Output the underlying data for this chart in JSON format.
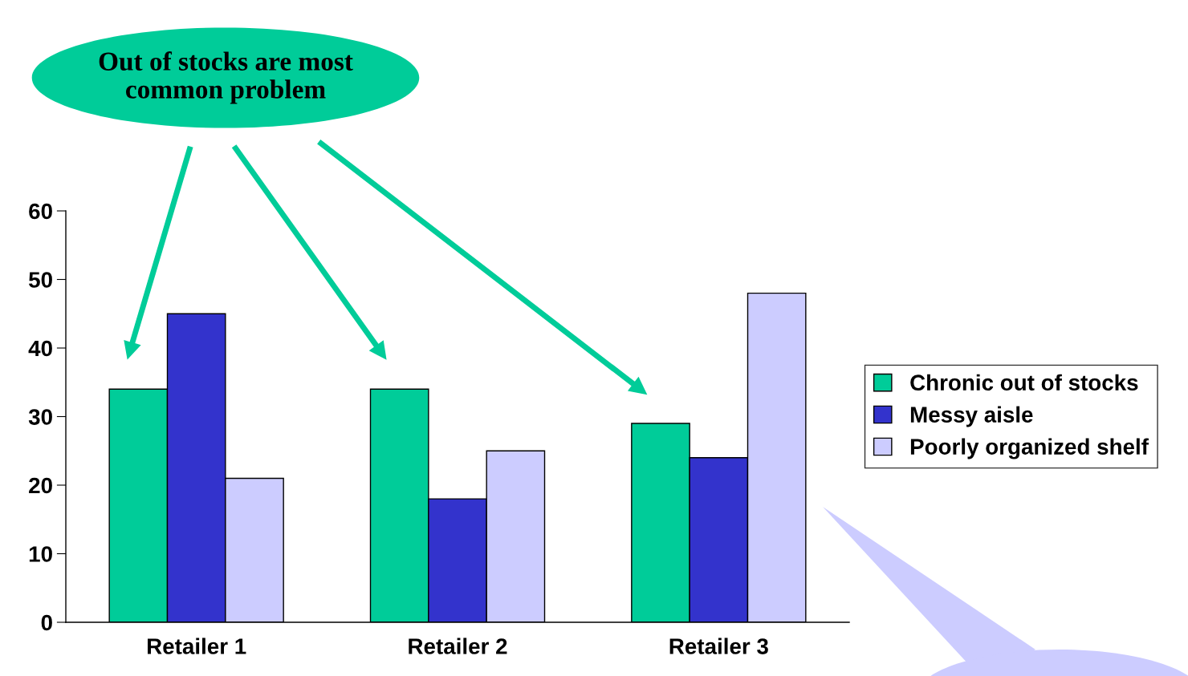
{
  "chart_data": {
    "type": "bar",
    "categories": [
      "Retailer 1",
      "Retailer 2",
      "Retailer 3"
    ],
    "series": [
      {
        "name": "Chronic out of stocks",
        "color": "#00cc99",
        "values": [
          34,
          34,
          29
        ]
      },
      {
        "name": "Messy aisle",
        "color": "#3333cc",
        "values": [
          45,
          18,
          24
        ]
      },
      {
        "name": "Poorly organized shelf",
        "color": "#ccccff",
        "values": [
          21,
          25,
          48
        ]
      }
    ],
    "ylim": [
      0,
      60
    ],
    "yticks": [
      0,
      10,
      20,
      30,
      40,
      50,
      60
    ],
    "annotations": [
      "Out of stocks are most\ncommon problem"
    ],
    "legend": "right",
    "grid": false
  }
}
